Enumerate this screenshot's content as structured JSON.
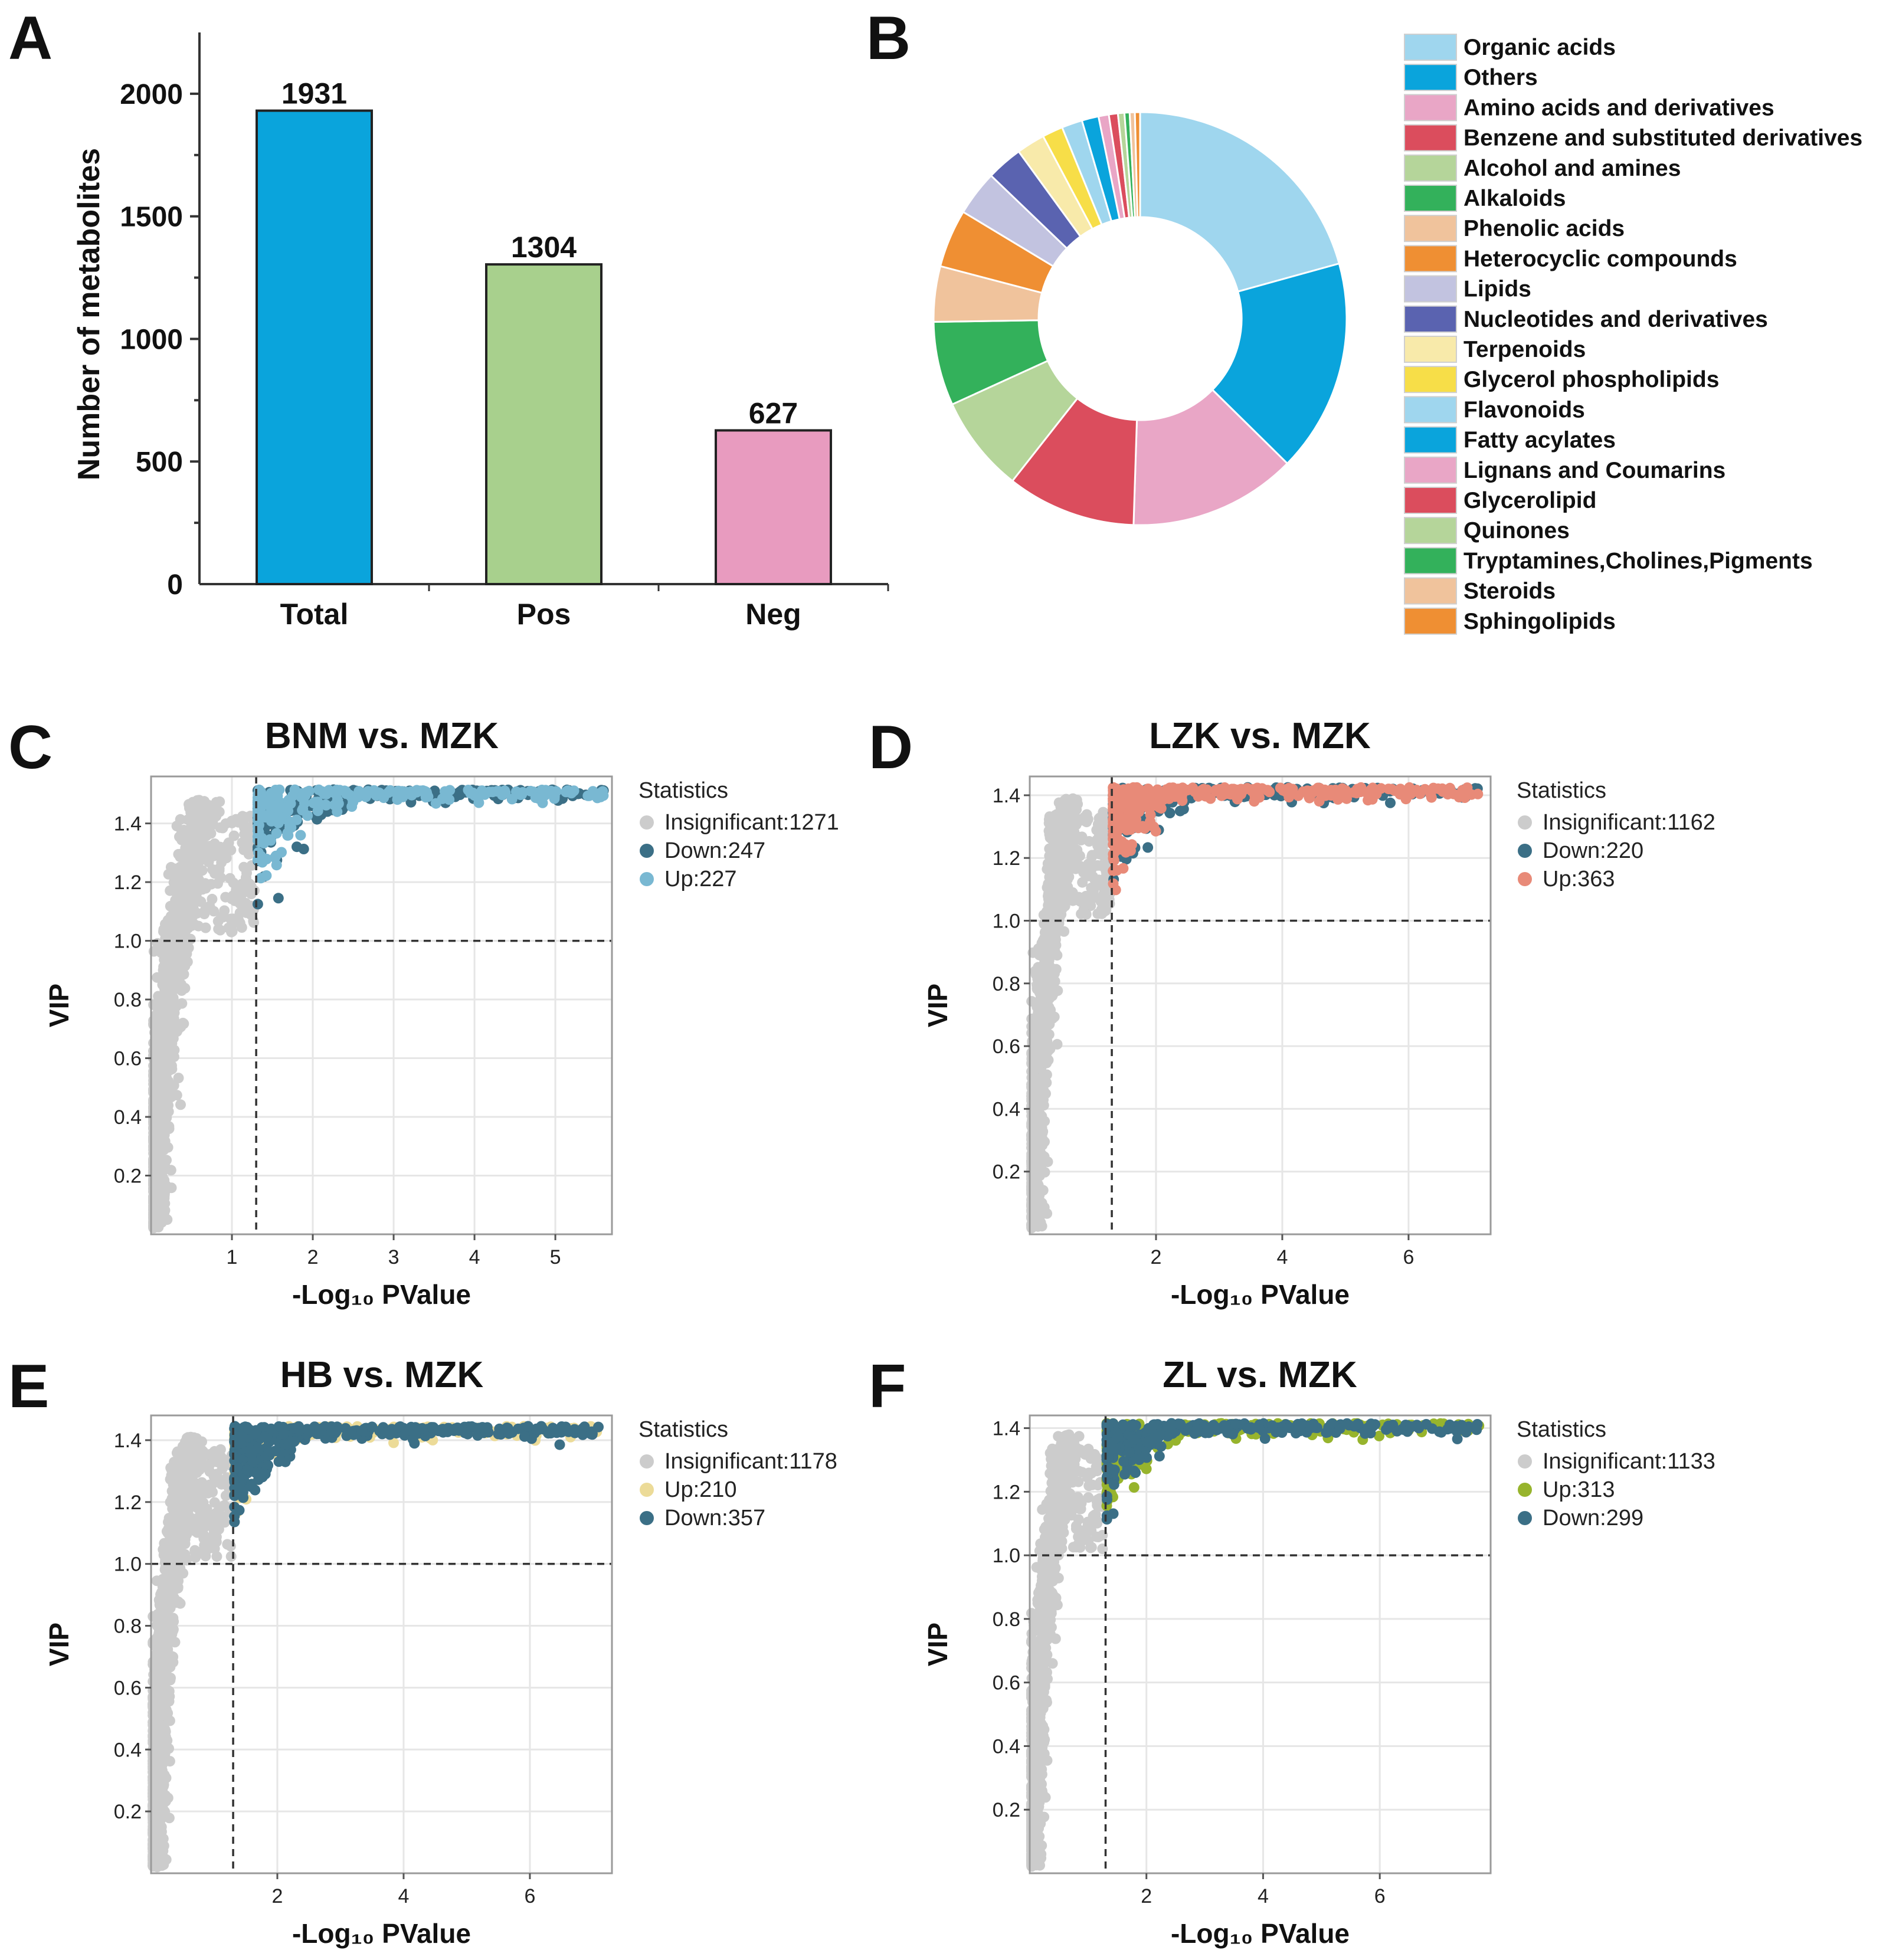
{
  "panel_labels": {
    "a": "A",
    "b": "B",
    "c": "C",
    "d": "D",
    "e": "E",
    "f": "F"
  },
  "chart_data": [
    {
      "panel": "A",
      "type": "bar",
      "ylabel": "Number of metabolites",
      "categories": [
        "Total",
        "Pos",
        "Neg"
      ],
      "values": [
        1931,
        1304,
        627
      ],
      "value_labels": [
        "1931",
        "1304",
        "627"
      ],
      "colors": [
        "#0aa4dc",
        "#a8d08d",
        "#e89bbf"
      ],
      "ylim": [
        0,
        2250
      ],
      "yticks": [
        0,
        500,
        1000,
        1500,
        2000
      ]
    },
    {
      "panel": "B",
      "type": "pie",
      "donut": true,
      "legend_position": "right",
      "slices": [
        {
          "label": "Organic acids",
          "value": 20.5,
          "color": "#9fd6ee"
        },
        {
          "label": "Others",
          "value": 16.5,
          "color": "#0aa4dc"
        },
        {
          "label": "Amino acids and derivatives",
          "value": 13.0,
          "color": "#e9a6c6"
        },
        {
          "label": "Benzene and substituted derivatives",
          "value": 10.0,
          "color": "#db4d5d"
        },
        {
          "label": "Alcohol and amines",
          "value": 7.5,
          "color": "#b5d59a"
        },
        {
          "label": "Alkaloids",
          "value": 6.5,
          "color": "#33b15b"
        },
        {
          "label": "Phenolic acids",
          "value": 4.3,
          "color": "#f0c39c"
        },
        {
          "label": "Heterocyclic compounds",
          "value": 4.5,
          "color": "#ef8f33"
        },
        {
          "label": "Lipids",
          "value": 3.5,
          "color": "#c2c3e0"
        },
        {
          "label": "Nucleotides and derivatives",
          "value": 2.8,
          "color": "#5a63b0"
        },
        {
          "label": "Terpenoids",
          "value": 2.2,
          "color": "#f8eaaa"
        },
        {
          "label": "Glycerol phospholipids",
          "value": 1.6,
          "color": "#f7de48"
        },
        {
          "label": "Flavonoids",
          "value": 1.6,
          "color": "#9fd6ee"
        },
        {
          "label": "Fatty acylates",
          "value": 1.3,
          "color": "#0aa4dc"
        },
        {
          "label": "Lignans and Coumarins",
          "value": 0.8,
          "color": "#e9a6c6"
        },
        {
          "label": "Glycerolipid",
          "value": 0.7,
          "color": "#db4d5d"
        },
        {
          "label": "Quinones",
          "value": 0.5,
          "color": "#b5d59a"
        },
        {
          "label": "Tryptamines,Cholines,Pigments",
          "value": 0.4,
          "color": "#33b15b"
        },
        {
          "label": "Steroids",
          "value": 0.4,
          "color": "#f0c39c"
        },
        {
          "label": "Sphingolipids",
          "value": 0.4,
          "color": "#ef8f33"
        }
      ]
    },
    {
      "panel": "C",
      "type": "scatter",
      "title": "BNM vs. MZK",
      "xlabel": "-Log₁₀ PValue",
      "ylabel": "VIP",
      "xlim": [
        0,
        5.7
      ],
      "ylim": [
        0,
        1.56
      ],
      "xticks": [
        1,
        2,
        3,
        4,
        5
      ],
      "yticks": [
        0.2,
        0.4,
        0.6,
        0.8,
        1.0,
        1.2,
        1.4
      ],
      "xgrid": [
        1,
        2,
        3,
        4,
        5
      ],
      "ygrid": [
        0.2,
        0.4,
        0.6,
        0.8,
        1.0,
        1.2,
        1.4
      ],
      "thresholds": {
        "x": 1.3,
        "y": 1.0
      },
      "max_vip": 1.52,
      "x_max": 5.6,
      "legend_title": "Statistics",
      "series": [
        {
          "name": "Insignificant",
          "count": 1271,
          "label": "Insignificant:1271",
          "color": "#cccccc",
          "kind": "insig"
        },
        {
          "name": "Down",
          "count": 247,
          "label": "Down:247",
          "color": "#3b6f86",
          "kind": "sig"
        },
        {
          "name": "Up",
          "count": 227,
          "label": "Up:227",
          "color": "#79b8d2",
          "kind": "sig"
        }
      ]
    },
    {
      "panel": "D",
      "type": "scatter",
      "title": "LZK vs. MZK",
      "xlabel": "-Log₁₀ PValue",
      "ylabel": "VIP",
      "xlim": [
        0,
        7.3
      ],
      "ylim": [
        0,
        1.46
      ],
      "xticks": [
        2,
        4,
        6
      ],
      "yticks": [
        0.2,
        0.4,
        0.6,
        0.8,
        1.0,
        1.2,
        1.4
      ],
      "xgrid": [
        2,
        4,
        6
      ],
      "ygrid": [
        0.2,
        0.4,
        0.6,
        0.8,
        1.0,
        1.2,
        1.4
      ],
      "thresholds": {
        "x": 1.3,
        "y": 1.0
      },
      "max_vip": 1.43,
      "x_max": 7.1,
      "legend_title": "Statistics",
      "series": [
        {
          "name": "Insignificant",
          "count": 1162,
          "label": "Insignificant:1162",
          "color": "#cccccc",
          "kind": "insig"
        },
        {
          "name": "Down",
          "count": 220,
          "label": "Down:220",
          "color": "#3b6f86",
          "kind": "sig"
        },
        {
          "name": "Up",
          "count": 363,
          "label": "Up:363",
          "color": "#e88a78",
          "kind": "sig"
        }
      ]
    },
    {
      "panel": "E",
      "type": "scatter",
      "title": "HB vs. MZK",
      "xlabel": "-Log₁₀ PValue",
      "ylabel": "VIP",
      "xlim": [
        0,
        7.3
      ],
      "ylim": [
        0,
        1.48
      ],
      "xticks": [
        2,
        4,
        6
      ],
      "yticks": [
        0.2,
        0.4,
        0.6,
        0.8,
        1.0,
        1.2,
        1.4
      ],
      "xgrid": [
        2,
        4,
        6
      ],
      "ygrid": [
        0.2,
        0.4,
        0.6,
        0.8,
        1.0,
        1.2,
        1.4
      ],
      "thresholds": {
        "x": 1.3,
        "y": 1.0
      },
      "max_vip": 1.45,
      "x_max": 7.1,
      "legend_title": "Statistics",
      "series": [
        {
          "name": "Insignificant",
          "count": 1178,
          "label": "Insignificant:1178",
          "color": "#cccccc",
          "kind": "insig"
        },
        {
          "name": "Up",
          "count": 210,
          "label": "Up:210",
          "color": "#ecdb98",
          "kind": "sig"
        },
        {
          "name": "Down",
          "count": 357,
          "label": "Down:357",
          "color": "#3b6f86",
          "kind": "sig"
        }
      ]
    },
    {
      "panel": "F",
      "type": "scatter",
      "title": "ZL vs. MZK",
      "xlabel": "-Log₁₀ PValue",
      "ylabel": "VIP",
      "xlim": [
        0,
        7.9
      ],
      "ylim": [
        0,
        1.44
      ],
      "xticks": [
        2,
        4,
        6
      ],
      "yticks": [
        0.2,
        0.4,
        0.6,
        0.8,
        1.0,
        1.2,
        1.4
      ],
      "xgrid": [
        2,
        4,
        6
      ],
      "ygrid": [
        0.2,
        0.4,
        0.6,
        0.8,
        1.0,
        1.2,
        1.4
      ],
      "thresholds": {
        "x": 1.3,
        "y": 1.0
      },
      "max_vip": 1.42,
      "x_max": 7.7,
      "legend_title": "Statistics",
      "series": [
        {
          "name": "Insignificant",
          "count": 1133,
          "label": "Insignificant:1133",
          "color": "#cccccc",
          "kind": "insig"
        },
        {
          "name": "Up",
          "count": 313,
          "label": "Up:313",
          "color": "#97b42d",
          "kind": "sig"
        },
        {
          "name": "Down",
          "count": 299,
          "label": "Down:299",
          "color": "#3b6f86",
          "kind": "sig"
        }
      ]
    }
  ]
}
